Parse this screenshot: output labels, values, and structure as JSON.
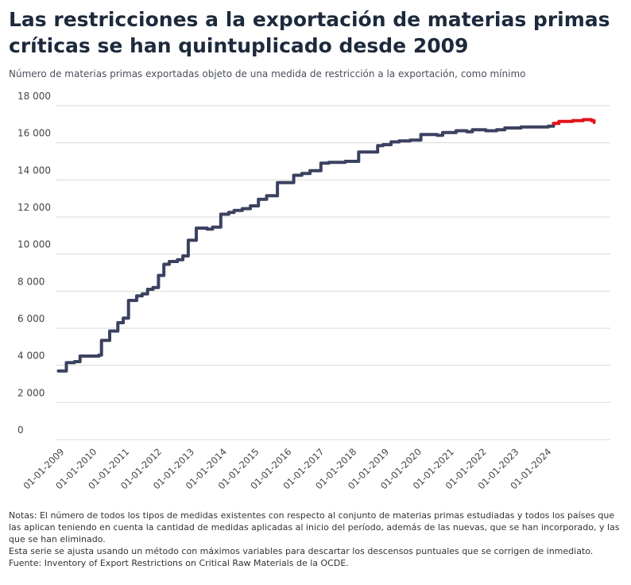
{
  "title": "Las restricciones a la exportación de materias primas críticas se han quintuplicado desde 2009",
  "subtitle": "Número de materias primas exportadas objeto de una medida de restricción a la exportación, como mínimo",
  "notes": [
    "Notas: El número de todos los tipos de medidas existentes con respecto al conjunto de materias primas estudiadas y todos los países que las aplican teniendo en cuenta la cantidad de medidas aplicadas al inicio del período, además de las nuevas, que se han incorporado, y las que se han eliminado.",
    "Esta serie se ajusta usando un método con máximos variables para descartar los descensos puntuales que se corrigen de inmediato.",
    "Fuente: Inventory of Export Restrictions on Critical Raw Materials de la OCDE."
  ],
  "colors": {
    "main_line": "#3b4260",
    "recent_line": "#e0141c",
    "grid": "#d9d9d9"
  },
  "chart_data": {
    "type": "line",
    "title": "Las restricciones a la exportación de materias primas críticas se han quintuplicado desde 2009",
    "xlabel": "",
    "ylabel": "",
    "ylim": [
      0,
      18000
    ],
    "yticks": [
      0,
      2000,
      4000,
      6000,
      8000,
      10000,
      12000,
      14000,
      16000,
      18000
    ],
    "ytick_labels": [
      "0",
      "2 000",
      "4 000",
      "6 000",
      "8 000",
      "10 000",
      "12 000",
      "14 000",
      "16 000",
      "18 000"
    ],
    "xlim": [
      "2008-12-01",
      "2025-12-31"
    ],
    "xtick_labels": [
      "01-01-2009",
      "01-01-2010",
      "01-01-2011",
      "01-01-2012",
      "01-01-2013",
      "01-01-2014",
      "01-01-2015",
      "01-01-2016",
      "01-01-2017",
      "01-01-2018",
      "01-01-2019",
      "01-01-2020",
      "01-01-2021",
      "01-01-2022",
      "01-01-2023",
      "01-01-2024"
    ],
    "grid": "horizontal",
    "legend": "none",
    "step": true,
    "series": [
      {
        "color": "#3b4260",
        "points": [
          [
            "2009-01-01",
            3700
          ],
          [
            "2009-04-01",
            4150
          ],
          [
            "2009-07-01",
            4200
          ],
          [
            "2009-09-01",
            4500
          ],
          [
            "2010-04-01",
            4550
          ],
          [
            "2010-05-01",
            5350
          ],
          [
            "2010-08-01",
            5850
          ],
          [
            "2010-11-01",
            6300
          ],
          [
            "2011-01-01",
            6550
          ],
          [
            "2011-03-01",
            7500
          ],
          [
            "2011-06-01",
            7750
          ],
          [
            "2011-08-01",
            7850
          ],
          [
            "2011-10-01",
            8100
          ],
          [
            "2011-12-01",
            8200
          ],
          [
            "2012-02-01",
            8850
          ],
          [
            "2012-04-01",
            9450
          ],
          [
            "2012-06-01",
            9600
          ],
          [
            "2012-09-01",
            9700
          ],
          [
            "2012-11-01",
            9900
          ],
          [
            "2013-01-01",
            10750
          ],
          [
            "2013-04-01",
            11400
          ],
          [
            "2013-08-01",
            11350
          ],
          [
            "2013-10-01",
            11450
          ],
          [
            "2014-01-01",
            12150
          ],
          [
            "2014-04-01",
            12250
          ],
          [
            "2014-06-01",
            12350
          ],
          [
            "2014-09-01",
            12450
          ],
          [
            "2014-12-01",
            12600
          ],
          [
            "2015-03-01",
            12950
          ],
          [
            "2015-06-01",
            13150
          ],
          [
            "2015-10-01",
            13850
          ],
          [
            "2016-04-01",
            14250
          ],
          [
            "2016-07-01",
            14350
          ],
          [
            "2016-10-01",
            14500
          ],
          [
            "2017-02-01",
            14900
          ],
          [
            "2017-05-01",
            14950
          ],
          [
            "2017-11-01",
            15000
          ],
          [
            "2018-04-01",
            15500
          ],
          [
            "2018-11-01",
            15850
          ],
          [
            "2019-01-01",
            15900
          ],
          [
            "2019-04-01",
            16050
          ],
          [
            "2019-07-01",
            16100
          ],
          [
            "2019-11-01",
            16150
          ],
          [
            "2020-03-01",
            16450
          ],
          [
            "2020-09-01",
            16400
          ],
          [
            "2020-11-01",
            16550
          ],
          [
            "2021-04-01",
            16650
          ],
          [
            "2021-08-01",
            16600
          ],
          [
            "2021-10-01",
            16700
          ],
          [
            "2022-03-01",
            16650
          ],
          [
            "2022-07-01",
            16700
          ],
          [
            "2022-10-01",
            16800
          ],
          [
            "2023-04-01",
            16850
          ],
          [
            "2023-10-01",
            16850
          ],
          [
            "2024-02-01",
            16900
          ],
          [
            "2024-04-01",
            17050
          ]
        ]
      },
      {
        "color": "#e0141c",
        "points": [
          [
            "2024-04-01",
            17050
          ],
          [
            "2024-06-01",
            17150
          ],
          [
            "2024-09-01",
            17150
          ],
          [
            "2024-11-01",
            17200
          ],
          [
            "2025-03-01",
            17250
          ],
          [
            "2025-06-01",
            17200
          ],
          [
            "2025-07-01",
            17100
          ]
        ]
      }
    ]
  }
}
